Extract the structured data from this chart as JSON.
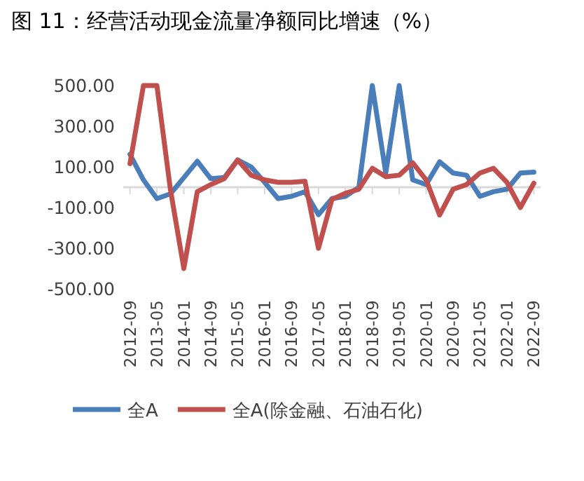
{
  "chart_data": {
    "type": "line",
    "title": "图 11：经营活动现金流量净额同比增速（%）",
    "categories": [
      "2012-09",
      null,
      "2013-05",
      null,
      "2014-01",
      null,
      "2014-09",
      null,
      "2015-05",
      null,
      "2016-01",
      null,
      "2016-09",
      null,
      "2017-05",
      null,
      "2018-01",
      null,
      "2018-09",
      null,
      "2019-05",
      null,
      "2020-01",
      null,
      "2020-09",
      null,
      "2021-05",
      null,
      "2022-01",
      null,
      "2022-09"
    ],
    "series": [
      {
        "name": "全A",
        "color": "#4a7ebb",
        "values": [
          162,
          36,
          -56,
          -33,
          47,
          128,
          42,
          47,
          134,
          100,
          24,
          -56,
          -45,
          -22,
          -135,
          -56,
          -45,
          0,
          500,
          70,
          500,
          36,
          13,
          125,
          70,
          59,
          -45,
          -22,
          -10,
          70,
          74
        ]
      },
      {
        "name": "全A(除金融、石油石化)",
        "color": "#c0504d",
        "values": [
          116,
          500,
          500,
          -10,
          -400,
          -22,
          13,
          42,
          134,
          59,
          36,
          24,
          24,
          29,
          -300,
          -60,
          -30,
          -10,
          93,
          52,
          59,
          120,
          36,
          -137,
          -10,
          13,
          70,
          93,
          24,
          -100,
          20
        ]
      }
    ],
    "ylim": [
      -500,
      500
    ],
    "yticks": [
      {
        "value": 500,
        "label": "500.00"
      },
      {
        "value": 300,
        "label": "300.00"
      },
      {
        "value": 100,
        "label": "100.00"
      },
      {
        "value": -100,
        "label": "-100.00"
      },
      {
        "value": -300,
        "label": "-300.00"
      },
      {
        "value": -500,
        "label": "-500.00"
      }
    ],
    "legend": "bottom",
    "line_style": "solid",
    "marker": "none"
  }
}
